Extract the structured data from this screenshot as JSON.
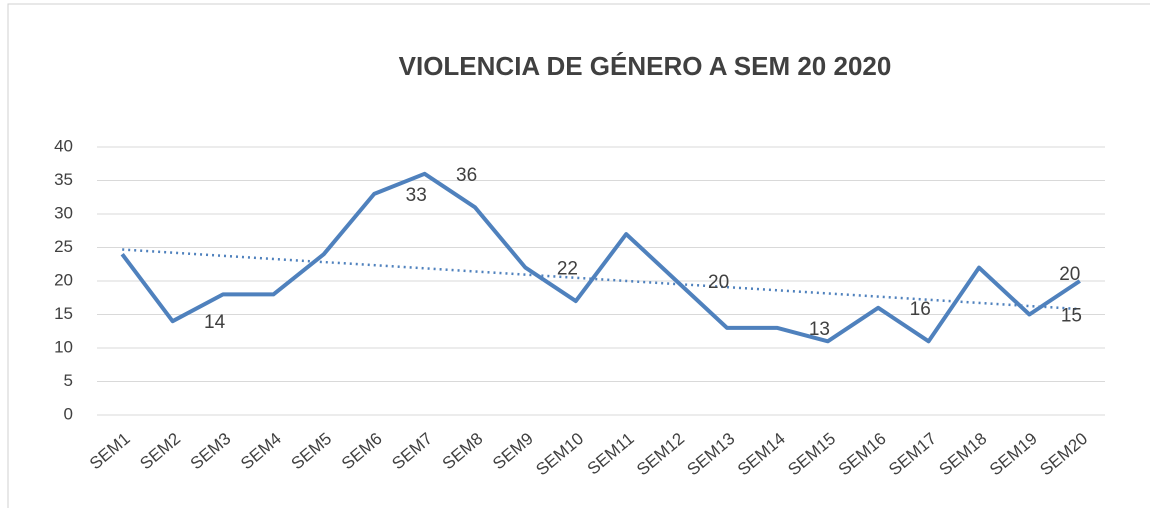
{
  "chart_data": {
    "type": "line",
    "title": "VIOLENCIA DE GÉNERO A SEM 20 2020",
    "categories": [
      "SEM1",
      "SEM2",
      "SEM3",
      "SEM4",
      "SEM5",
      "SEM6",
      "SEM7",
      "SEM8",
      "SEM9",
      "SEM10",
      "SEM11",
      "SEM12",
      "SEM13",
      "SEM14",
      "SEM15",
      "SEM16",
      "SEM17",
      "SEM18",
      "SEM19",
      "SEM20"
    ],
    "series": [
      {
        "color": "#4f81bd",
        "values": [
          24,
          14,
          18,
          18,
          24,
          33,
          36,
          31,
          22,
          17,
          27,
          20,
          13,
          13,
          11,
          16,
          11,
          22,
          15,
          20
        ]
      }
    ],
    "labeled_points": [
      1,
      5,
      6,
      8,
      11,
      13,
      15,
      18,
      19
    ],
    "trendline": "linear",
    "trendline_color": "#4f81bd",
    "ylim": [
      0,
      40
    ],
    "yticks": [
      0,
      5,
      10,
      15,
      20,
      25,
      30,
      35,
      40
    ],
    "grid": true
  }
}
